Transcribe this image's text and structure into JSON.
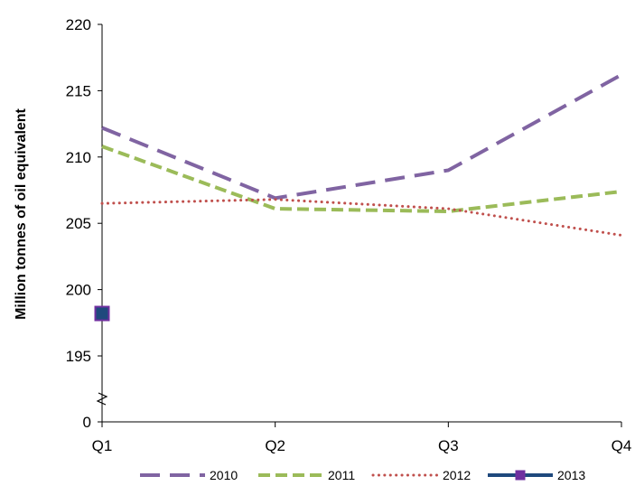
{
  "chart_data": {
    "type": "line",
    "title": "",
    "xlabel": "",
    "ylabel": "Million tonnes of oil equivalent",
    "categories": [
      "Q1",
      "Q2",
      "Q3",
      "Q4"
    ],
    "ylim": [
      195,
      220
    ],
    "y_ticks": [
      "220",
      "215",
      "210",
      "205",
      "200",
      "195",
      "0"
    ],
    "axis_break": true,
    "grid": false,
    "legend_position": "bottom",
    "series": [
      {
        "name": "2010",
        "values": [
          212.2,
          206.9,
          209.0,
          216.2
        ],
        "color": "#8064A2",
        "style": "long-dash"
      },
      {
        "name": "2011",
        "values": [
          210.8,
          206.1,
          205.9,
          207.4
        ],
        "color": "#9BBB59",
        "style": "dash"
      },
      {
        "name": "2012",
        "values": [
          206.5,
          206.8,
          206.1,
          204.1
        ],
        "color": "#C0504D",
        "style": "dot"
      },
      {
        "name": "2013",
        "values": [
          198.2,
          null,
          null,
          null
        ],
        "color": "#1F497D",
        "marker_color": "#7030A0",
        "style": "solid-square"
      }
    ]
  }
}
